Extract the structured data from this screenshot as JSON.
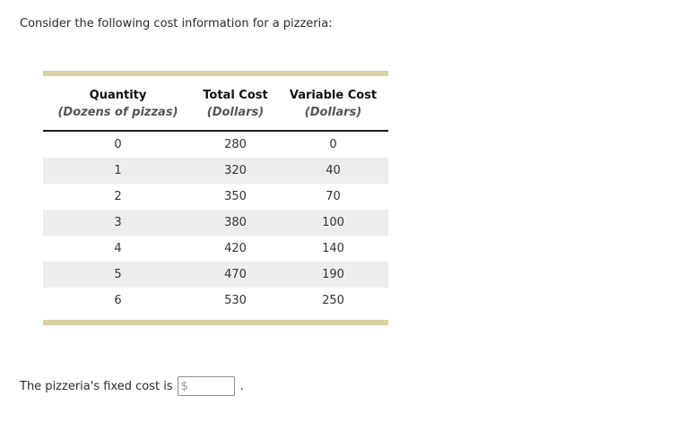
{
  "page": {
    "question_text": "Consider the following cost information for a pizzeria:"
  },
  "table": {
    "columns": [
      {
        "label": "Quantity",
        "sublabel": "(Dozens of pizzas)"
      },
      {
        "label": "Total Cost",
        "sublabel": "(Dollars)"
      },
      {
        "label": "Variable Cost",
        "sublabel": "(Dollars)"
      }
    ],
    "rows": [
      [
        "0",
        "280",
        "0"
      ],
      [
        "1",
        "320",
        "40"
      ],
      [
        "2",
        "350",
        "70"
      ],
      [
        "3",
        "380",
        "100"
      ],
      [
        "4",
        "420",
        "140"
      ],
      [
        "5",
        "470",
        "190"
      ],
      [
        "6",
        "530",
        "250"
      ]
    ]
  },
  "answer": {
    "prefix_text": "The pizzeria's fixed cost is",
    "input_value": "$",
    "suffix_text": "."
  },
  "colors": {
    "accent_bar": "#d7d1a3",
    "row_alt": "#ededed",
    "header_rule": "#1b1b1b",
    "sub_header_text": "#555555",
    "input_text": "#9a9a9a"
  }
}
